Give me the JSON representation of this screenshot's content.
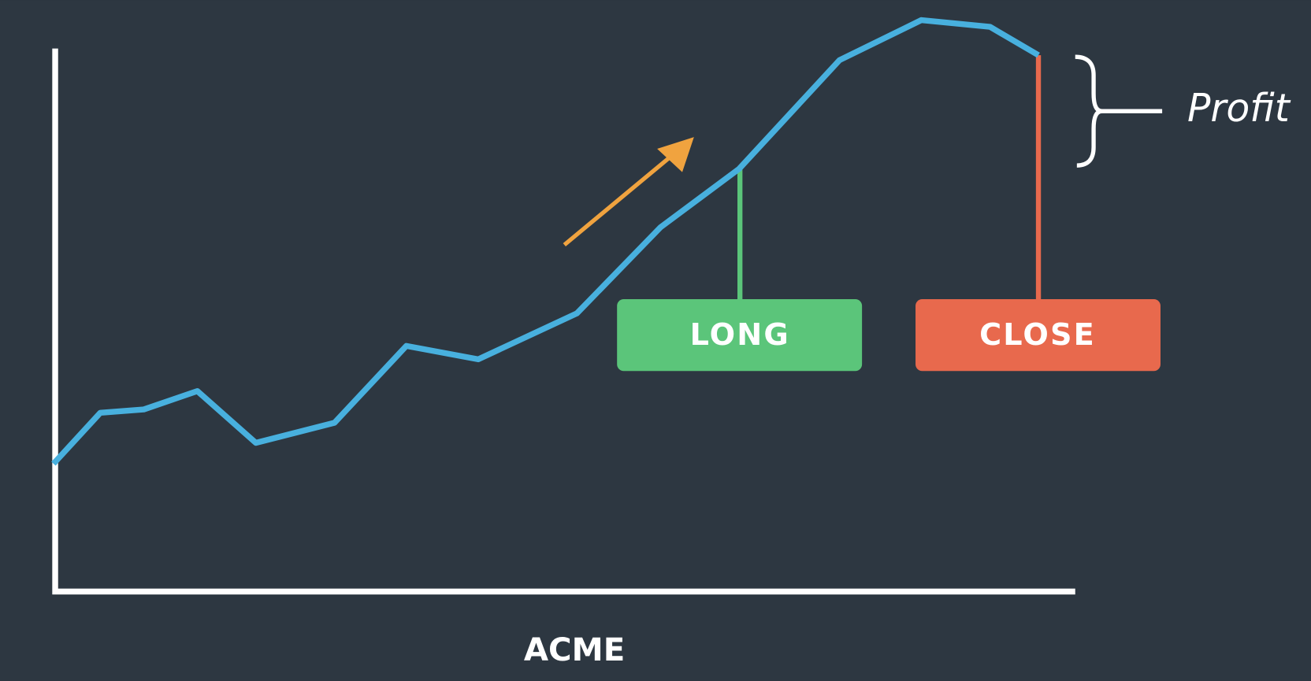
{
  "title": "ACME",
  "long_label": "LONG",
  "close_label": "CLOSE",
  "profit_label": "Profit"
}
